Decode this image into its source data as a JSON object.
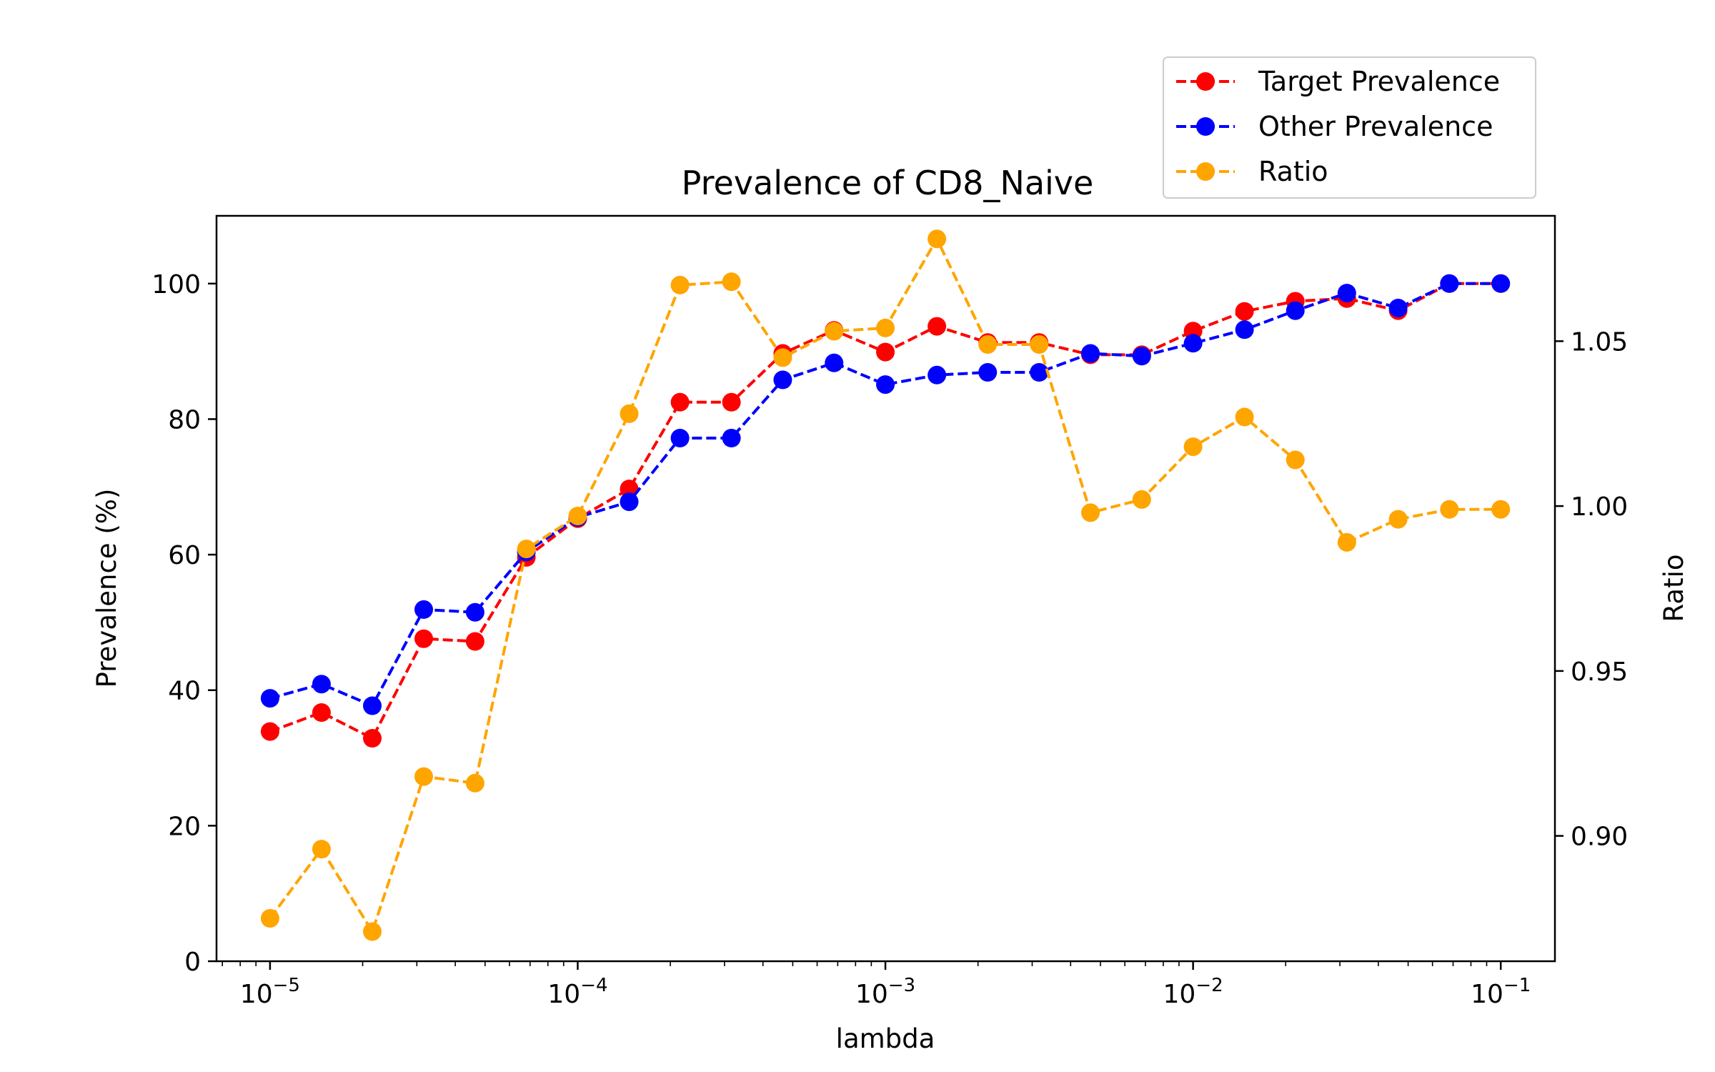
{
  "chart_data": {
    "type": "line",
    "title": "Prevalence of CD8_Naive",
    "xlabel": "lambda",
    "ylabel": "Prevalence (%)",
    "y2label": "Ratio",
    "xscale": "log",
    "xlim": [
      6.7e-06,
      0.15
    ],
    "ylim": [
      0,
      110
    ],
    "y2lim": [
      0.862,
      1.088
    ],
    "x_ticks": [
      1e-05,
      0.0001,
      0.001,
      0.01,
      0.1
    ],
    "x_tick_labels": [
      {
        "base": "10",
        "exp": "−5"
      },
      {
        "base": "10",
        "exp": "−4"
      },
      {
        "base": "10",
        "exp": "−3"
      },
      {
        "base": "10",
        "exp": "−2"
      },
      {
        "base": "10",
        "exp": "−1"
      }
    ],
    "y_ticks": [
      0,
      20,
      40,
      60,
      80,
      100
    ],
    "y_tick_labels": [
      "0",
      "20",
      "40",
      "60",
      "80",
      "100"
    ],
    "y2_ticks": [
      0.9,
      0.95,
      1.0,
      1.05
    ],
    "y2_tick_labels": [
      "0.90",
      "0.95",
      "1.00",
      "1.05"
    ],
    "grid": false,
    "legend_position": "top-right",
    "x": [
      1e-05,
      1.47e-05,
      2.15e-05,
      3.16e-05,
      4.64e-05,
      6.81e-05,
      0.0001,
      0.000147,
      0.000215,
      0.000316,
      0.000464,
      0.000681,
      0.001,
      0.00147,
      0.00215,
      0.00316,
      0.00464,
      0.00681,
      0.01,
      0.0147,
      0.0215,
      0.0316,
      0.0464,
      0.0681,
      0.1
    ],
    "series": [
      {
        "name": "Target Prevalence",
        "axis": "left",
        "color": "#ff0000",
        "values": [
          33.9,
          36.7,
          32.9,
          47.6,
          47.2,
          59.6,
          65.3,
          69.7,
          82.5,
          82.5,
          89.7,
          93.1,
          89.9,
          93.7,
          91.3,
          91.3,
          89.5,
          89.5,
          93.0,
          95.9,
          97.4,
          97.8,
          96.0,
          100.0,
          100.0
        ]
      },
      {
        "name": "Other Prevalence",
        "axis": "left",
        "color": "#0000ff",
        "values": [
          38.8,
          40.9,
          37.7,
          51.9,
          51.5,
          60.4,
          65.5,
          67.8,
          77.2,
          77.2,
          85.8,
          88.3,
          85.1,
          86.5,
          86.9,
          86.9,
          89.7,
          89.3,
          91.2,
          93.2,
          96.0,
          98.6,
          96.4,
          100.0,
          100.0
        ]
      },
      {
        "name": "Ratio",
        "axis": "right",
        "color": "#ffa500",
        "values": [
          0.875,
          0.896,
          0.871,
          0.918,
          0.916,
          0.987,
          0.997,
          1.028,
          1.067,
          1.068,
          1.045,
          1.053,
          1.054,
          1.081,
          1.049,
          1.049,
          0.998,
          1.002,
          1.018,
          1.027,
          1.014,
          0.989,
          0.996,
          0.999,
          0.999
        ]
      }
    ]
  }
}
